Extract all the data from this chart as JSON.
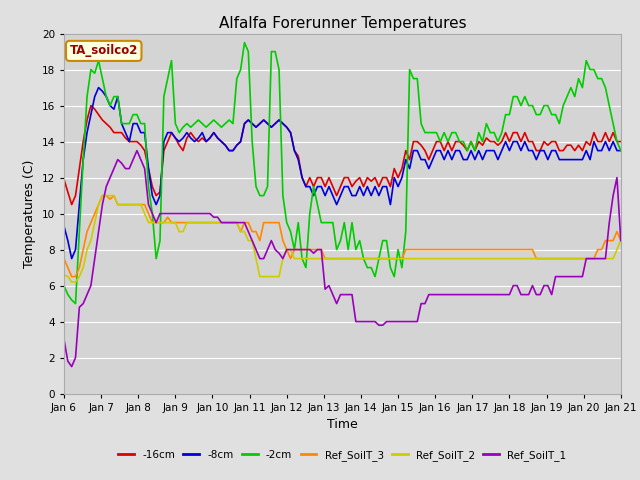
{
  "title": "Alfalfa Forerunner Temperatures",
  "xlabel": "Time",
  "ylabel": "Temperatures (C)",
  "annotation": "TA_soilco2",
  "ylim": [
    0,
    20
  ],
  "x_tick_labels": [
    "Jan 6",
    "Jan 7",
    "Jan 8",
    "Jan 9",
    "Jan 10",
    "Jan 11",
    "Jan 12",
    "Jan 13",
    "Jan 14",
    "Jan 15",
    "Jan 16",
    "Jan 17",
    "Jan 18",
    "Jan 19",
    "Jan 20",
    "Jan 21"
  ],
  "series": {
    "-16cm": {
      "color": "#dd0000",
      "linewidth": 1.2,
      "values": [
        11.9,
        11.2,
        10.5,
        11.0,
        12.5,
        14.0,
        15.2,
        16.0,
        15.8,
        15.5,
        15.2,
        15.0,
        14.8,
        14.5,
        14.5,
        14.5,
        14.2,
        14.0,
        14.0,
        14.0,
        13.8,
        13.5,
        12.5,
        11.5,
        11.0,
        11.2,
        13.5,
        14.0,
        14.5,
        14.2,
        13.8,
        13.5,
        14.2,
        14.5,
        14.2,
        14.0,
        14.2,
        14.0,
        14.2,
        14.5,
        14.2,
        14.0,
        13.8,
        13.5,
        13.5,
        13.8,
        14.0,
        15.0,
        15.2,
        15.0,
        14.8,
        15.0,
        15.2,
        15.0,
        14.8,
        15.0,
        15.2,
        15.0,
        14.8,
        14.5,
        13.5,
        13.2,
        12.0,
        11.5,
        12.0,
        11.5,
        12.0,
        12.0,
        11.5,
        12.0,
        11.5,
        11.0,
        11.5,
        12.0,
        12.0,
        11.5,
        11.8,
        12.0,
        11.5,
        12.0,
        11.8,
        12.0,
        11.5,
        12.0,
        12.0,
        11.5,
        12.5,
        12.0,
        12.5,
        13.5,
        13.0,
        14.0,
        14.0,
        13.8,
        13.5,
        13.0,
        13.5,
        14.0,
        14.0,
        13.5,
        14.0,
        13.5,
        14.0,
        14.0,
        13.8,
        13.5,
        14.0,
        13.5,
        14.0,
        13.8,
        14.2,
        14.0,
        14.0,
        13.8,
        14.0,
        14.5,
        14.0,
        14.5,
        14.5,
        14.0,
        14.5,
        14.0,
        14.0,
        13.5,
        13.5,
        14.0,
        13.8,
        14.0,
        14.0,
        13.5,
        13.5,
        13.8,
        13.8,
        13.5,
        13.8,
        13.5,
        14.0,
        13.8,
        14.5,
        14.0,
        14.0,
        14.5,
        14.0,
        14.5,
        14.0,
        14.0
      ]
    },
    "-8cm": {
      "color": "#0000dd",
      "linewidth": 1.2,
      "values": [
        9.3,
        8.5,
        7.5,
        8.0,
        10.5,
        13.0,
        14.5,
        15.5,
        16.5,
        17.0,
        16.8,
        16.5,
        16.0,
        15.8,
        16.5,
        15.0,
        14.5,
        14.0,
        15.0,
        15.0,
        14.5,
        14.5,
        12.5,
        11.0,
        10.5,
        11.0,
        14.0,
        14.5,
        14.5,
        14.2,
        14.0,
        14.2,
        14.5,
        14.2,
        14.0,
        14.2,
        14.5,
        14.0,
        14.2,
        14.5,
        14.2,
        14.0,
        13.8,
        13.5,
        13.5,
        13.8,
        14.0,
        15.0,
        15.2,
        15.0,
        14.8,
        15.0,
        15.2,
        15.0,
        14.8,
        15.0,
        15.2,
        15.0,
        14.8,
        14.5,
        13.5,
        13.0,
        12.0,
        11.5,
        11.5,
        11.0,
        11.5,
        11.5,
        11.0,
        11.5,
        11.0,
        10.5,
        11.0,
        11.5,
        11.5,
        11.0,
        11.0,
        11.5,
        11.0,
        11.5,
        11.0,
        11.5,
        11.0,
        11.5,
        11.5,
        10.5,
        12.0,
        11.5,
        12.0,
        13.0,
        12.5,
        13.5,
        13.5,
        13.0,
        13.0,
        12.5,
        13.0,
        13.5,
        13.5,
        13.0,
        13.5,
        13.0,
        13.5,
        13.5,
        13.0,
        13.0,
        13.5,
        13.0,
        13.5,
        13.0,
        13.5,
        13.5,
        13.5,
        13.0,
        13.5,
        14.0,
        13.5,
        14.0,
        14.0,
        13.5,
        14.0,
        13.5,
        13.5,
        13.0,
        13.5,
        13.5,
        13.0,
        13.5,
        13.5,
        13.0,
        13.0,
        13.0,
        13.0,
        13.0,
        13.0,
        13.0,
        13.5,
        13.0,
        14.0,
        13.5,
        13.5,
        14.0,
        13.5,
        14.0,
        13.5,
        13.5
      ]
    },
    "-2cm": {
      "color": "#00cc00",
      "linewidth": 1.2,
      "values": [
        6.0,
        5.5,
        5.2,
        5.0,
        9.0,
        13.0,
        16.5,
        18.0,
        17.8,
        18.5,
        17.5,
        16.5,
        16.0,
        16.5,
        16.5,
        15.0,
        15.0,
        15.0,
        15.5,
        15.5,
        15.0,
        15.0,
        11.5,
        10.0,
        7.5,
        8.5,
        16.5,
        17.5,
        18.5,
        15.0,
        14.5,
        14.8,
        15.0,
        14.8,
        15.0,
        15.2,
        15.0,
        14.8,
        15.0,
        15.2,
        15.0,
        14.8,
        15.0,
        15.2,
        15.0,
        17.5,
        18.0,
        19.5,
        19.0,
        14.0,
        11.5,
        11.0,
        11.0,
        11.5,
        19.0,
        19.0,
        18.0,
        11.0,
        9.5,
        9.0,
        8.0,
        9.5,
        7.5,
        7.0,
        10.0,
        11.5,
        10.5,
        9.5,
        9.5,
        9.5,
        9.5,
        8.0,
        8.5,
        9.5,
        8.0,
        9.5,
        8.0,
        8.5,
        7.5,
        7.0,
        7.0,
        6.5,
        7.5,
        8.5,
        8.5,
        7.0,
        6.5,
        8.0,
        7.0,
        9.0,
        18.0,
        17.5,
        17.5,
        15.0,
        14.5,
        14.5,
        14.5,
        14.5,
        14.0,
        14.5,
        14.0,
        14.5,
        14.5,
        14.0,
        14.0,
        13.5,
        14.0,
        13.5,
        14.5,
        14.0,
        15.0,
        14.5,
        14.5,
        14.0,
        14.5,
        15.5,
        15.5,
        16.5,
        16.5,
        16.0,
        16.5,
        16.0,
        16.0,
        15.5,
        15.5,
        16.0,
        16.0,
        15.5,
        15.5,
        15.0,
        16.0,
        16.5,
        17.0,
        16.5,
        17.5,
        17.0,
        18.5,
        18.0,
        18.0,
        17.5,
        17.5,
        17.0,
        16.0,
        15.0,
        14.0,
        13.5
      ]
    },
    "Ref_SoilT_3": {
      "color": "#ff8800",
      "linewidth": 1.2,
      "values": [
        7.5,
        7.0,
        6.5,
        6.5,
        7.0,
        8.0,
        9.0,
        9.5,
        10.0,
        10.5,
        11.0,
        11.0,
        10.8,
        11.0,
        10.5,
        10.5,
        10.5,
        10.5,
        10.5,
        10.5,
        10.5,
        10.5,
        10.0,
        9.5,
        9.5,
        9.5,
        9.5,
        9.8,
        9.5,
        9.5,
        9.5,
        9.5,
        9.5,
        9.5,
        9.5,
        9.5,
        9.5,
        9.5,
        9.5,
        9.5,
        9.5,
        9.5,
        9.5,
        9.5,
        9.5,
        9.5,
        9.0,
        9.5,
        9.5,
        9.0,
        9.0,
        8.5,
        9.5,
        9.5,
        9.5,
        9.5,
        9.5,
        8.5,
        8.0,
        7.5,
        8.0,
        8.0,
        8.0,
        8.0,
        8.0,
        8.0,
        8.0,
        8.0,
        7.5,
        7.5,
        7.5,
        7.5,
        7.5,
        7.5,
        7.5,
        7.5,
        7.5,
        7.5,
        7.5,
        7.5,
        7.5,
        7.5,
        7.5,
        7.5,
        7.5,
        7.5,
        7.5,
        7.5,
        7.5,
        8.0,
        8.0,
        8.0,
        8.0,
        8.0,
        8.0,
        8.0,
        8.0,
        8.0,
        8.0,
        8.0,
        8.0,
        8.0,
        8.0,
        8.0,
        8.0,
        8.0,
        8.0,
        8.0,
        8.0,
        8.0,
        8.0,
        8.0,
        8.0,
        8.0,
        8.0,
        8.0,
        8.0,
        8.0,
        8.0,
        8.0,
        8.0,
        8.0,
        8.0,
        7.5,
        7.5,
        7.5,
        7.5,
        7.5,
        7.5,
        7.5,
        7.5,
        7.5,
        7.5,
        7.5,
        7.5,
        7.5,
        7.5,
        7.5,
        7.5,
        8.0,
        8.0,
        8.5,
        8.5,
        8.5,
        9.0,
        8.5
      ]
    },
    "Ref_SoilT_2": {
      "color": "#cccc00",
      "linewidth": 1.2,
      "values": [
        6.6,
        6.5,
        6.2,
        6.2,
        6.5,
        7.0,
        8.0,
        8.5,
        9.5,
        10.5,
        11.0,
        11.0,
        11.0,
        11.0,
        10.5,
        10.5,
        10.5,
        10.5,
        10.5,
        10.5,
        10.5,
        10.0,
        9.5,
        9.5,
        9.5,
        9.5,
        9.5,
        9.5,
        9.5,
        9.5,
        9.0,
        9.0,
        9.5,
        9.5,
        9.5,
        9.5,
        9.5,
        9.5,
        9.5,
        9.5,
        9.5,
        9.5,
        9.5,
        9.5,
        9.5,
        9.5,
        9.0,
        9.0,
        8.5,
        8.5,
        7.5,
        6.5,
        6.5,
        6.5,
        6.5,
        6.5,
        6.5,
        7.5,
        8.0,
        8.0,
        7.5,
        7.5,
        7.5,
        7.5,
        7.5,
        7.5,
        7.5,
        7.5,
        7.5,
        7.5,
        7.5,
        7.5,
        7.5,
        7.5,
        7.5,
        7.5,
        7.5,
        7.5,
        7.5,
        7.5,
        7.5,
        7.5,
        7.5,
        7.5,
        7.5,
        7.5,
        7.5,
        7.5,
        7.5,
        7.5,
        7.5,
        7.5,
        7.5,
        7.5,
        7.5,
        7.5,
        7.5,
        7.5,
        7.5,
        7.5,
        7.5,
        7.5,
        7.5,
        7.5,
        7.5,
        7.5,
        7.5,
        7.5,
        7.5,
        7.5,
        7.5,
        7.5,
        7.5,
        7.5,
        7.5,
        7.5,
        7.5,
        7.5,
        7.5,
        7.5,
        7.5,
        7.5,
        7.5,
        7.5,
        7.5,
        7.5,
        7.5,
        7.5,
        7.5,
        7.5,
        7.5,
        7.5,
        7.5,
        7.5,
        7.5,
        7.5,
        7.5,
        7.5,
        7.5,
        7.5,
        7.5,
        7.5,
        7.5,
        7.5,
        8.0,
        8.5
      ]
    },
    "Ref_SoilT_1": {
      "color": "#9900bb",
      "linewidth": 1.2,
      "values": [
        3.0,
        1.8,
        1.5,
        2.0,
        4.8,
        5.0,
        5.5,
        6.0,
        7.5,
        9.0,
        10.5,
        11.5,
        12.0,
        12.5,
        13.0,
        12.8,
        12.5,
        12.5,
        13.0,
        13.5,
        13.0,
        12.5,
        10.5,
        10.0,
        9.5,
        10.0,
        10.0,
        10.0,
        10.0,
        10.0,
        10.0,
        10.0,
        10.0,
        10.0,
        10.0,
        10.0,
        10.0,
        10.0,
        10.0,
        9.8,
        9.8,
        9.5,
        9.5,
        9.5,
        9.5,
        9.5,
        9.5,
        9.5,
        9.0,
        8.5,
        8.0,
        7.5,
        7.5,
        8.0,
        8.5,
        8.0,
        7.8,
        7.5,
        8.0,
        8.0,
        8.0,
        8.0,
        8.0,
        8.0,
        8.0,
        7.8,
        8.0,
        8.0,
        5.8,
        6.0,
        5.5,
        5.0,
        5.5,
        5.5,
        5.5,
        5.5,
        4.0,
        4.0,
        4.0,
        4.0,
        4.0,
        4.0,
        3.8,
        3.8,
        4.0,
        4.0,
        4.0,
        4.0,
        4.0,
        4.0,
        4.0,
        4.0,
        4.0,
        5.0,
        5.0,
        5.5,
        5.5,
        5.5,
        5.5,
        5.5,
        5.5,
        5.5,
        5.5,
        5.5,
        5.5,
        5.5,
        5.5,
        5.5,
        5.5,
        5.5,
        5.5,
        5.5,
        5.5,
        5.5,
        5.5,
        5.5,
        5.5,
        6.0,
        6.0,
        5.5,
        5.5,
        5.5,
        6.0,
        5.5,
        5.5,
        6.0,
        6.0,
        5.5,
        6.5,
        6.5,
        6.5,
        6.5,
        6.5,
        6.5,
        6.5,
        6.5,
        7.5,
        7.5,
        7.5,
        7.5,
        7.5,
        7.5,
        9.5,
        11.0,
        12.0,
        8.5
      ]
    }
  },
  "background_color": "#e0e0e0",
  "plot_bg_color": "#d4d4d4",
  "grid_color": "#ffffff",
  "title_fontsize": 11,
  "axis_label_fontsize": 9,
  "tick_label_fontsize": 7.5
}
